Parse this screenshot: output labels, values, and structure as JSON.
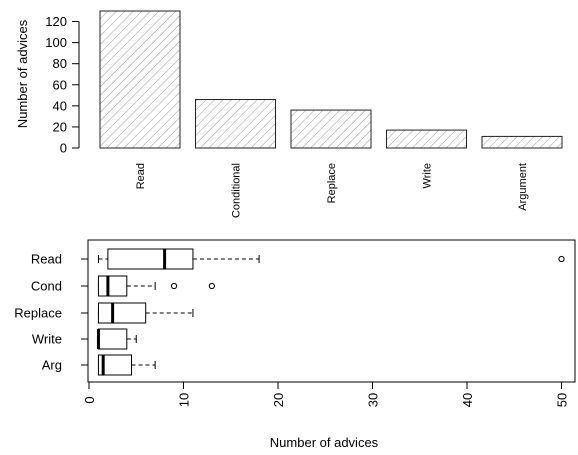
{
  "chart_data": [
    {
      "type": "bar",
      "ylabel": "Number of advices",
      "categories": [
        "Read",
        "Conditional",
        "Replace",
        "Write",
        "Argument"
      ],
      "values": [
        130,
        46,
        36,
        17,
        11
      ],
      "ylim": [
        0,
        130
      ],
      "yticks": [
        "0",
        "20",
        "40",
        "60",
        "80",
        "100",
        "120"
      ],
      "fill_pattern": "diagonal-hatch",
      "grid": false
    },
    {
      "type": "boxplot",
      "orientation": "horizontal",
      "xlabel": "Number of advices",
      "categories": [
        "Read",
        "Cond",
        "Replace",
        "Write",
        "Arg"
      ],
      "xlim": [
        0,
        52
      ],
      "xticks": [
        "0",
        "10",
        "20",
        "30",
        "40",
        "50"
      ],
      "boxes": [
        {
          "name": "Read",
          "whisker_low": 1,
          "q1": 2,
          "median": 8,
          "q3": 11,
          "whisker_high": 18,
          "outliers": [
            50
          ]
        },
        {
          "name": "Cond",
          "whisker_low": 1,
          "q1": 1,
          "median": 2,
          "q3": 4,
          "whisker_high": 7,
          "outliers": [
            9,
            13
          ]
        },
        {
          "name": "Replace",
          "whisker_low": 1,
          "q1": 1,
          "median": 2.5,
          "q3": 6,
          "whisker_high": 11,
          "outliers": []
        },
        {
          "name": "Write",
          "whisker_low": 1,
          "q1": 1,
          "median": 1,
          "q3": 4,
          "whisker_high": 5,
          "outliers": []
        },
        {
          "name": "Arg",
          "whisker_low": 1,
          "q1": 1,
          "median": 1.5,
          "q3": 4.5,
          "whisker_high": 7,
          "outliers": []
        }
      ],
      "grid": false
    }
  ]
}
